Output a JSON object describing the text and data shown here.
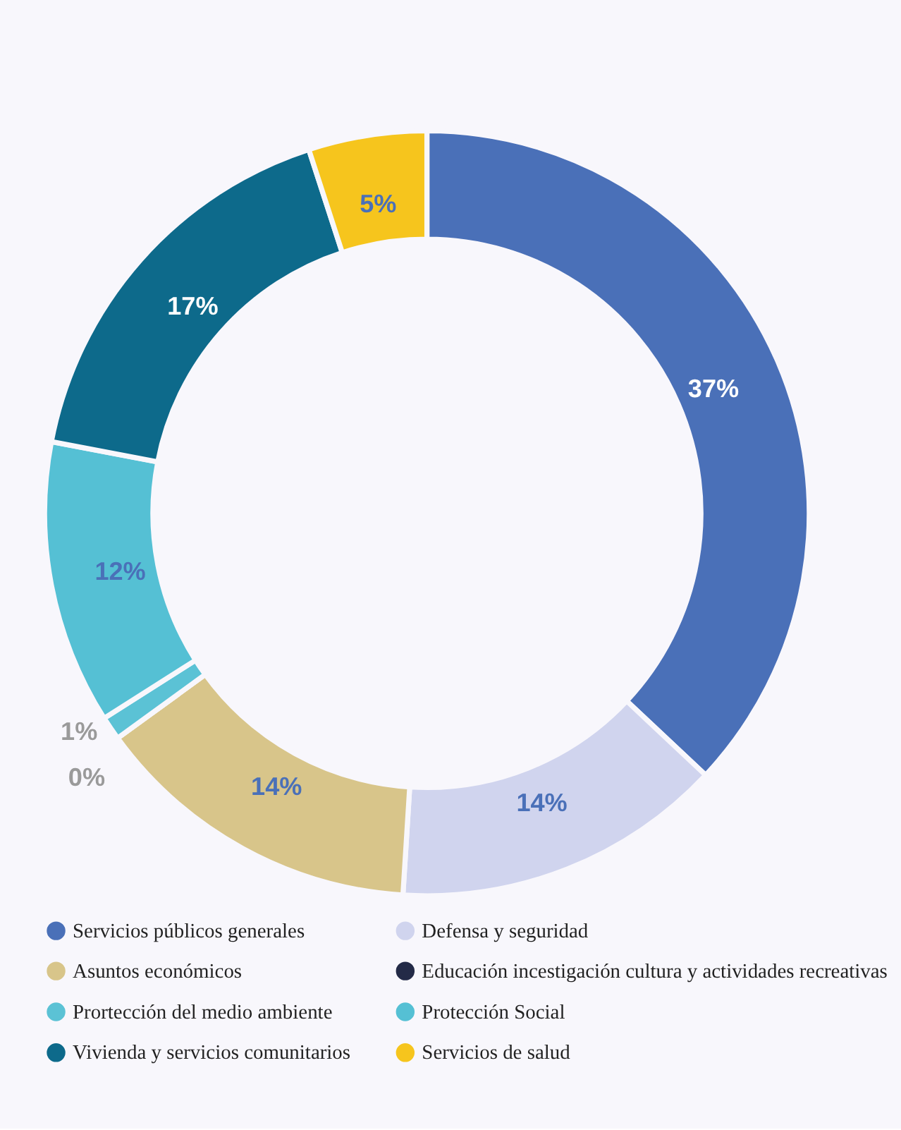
{
  "chart_data": {
    "type": "donut",
    "categories": [
      "Servicios públicos generales",
      "Defensa y seguridad",
      "Asuntos económicos",
      "Educación incestigación cultura y actividades recreativas",
      "Prortección del medio ambiente",
      "Protección Social",
      "Vivienda y servicios comunitarios",
      "Servicios de salud"
    ],
    "values": [
      37,
      14,
      14,
      0,
      1,
      12,
      17,
      5
    ],
    "colors": [
      "#4a70b8",
      "#d0d4ee",
      "#d8c58a",
      "#232a47",
      "#5bc2d5",
      "#55c0d4",
      "#0d6a8b",
      "#f6c51d"
    ],
    "value_labels": [
      "37%",
      "14%",
      "14%",
      "0%",
      "1%",
      "12%",
      "17%",
      "5%"
    ],
    "legend": "bottom"
  }
}
